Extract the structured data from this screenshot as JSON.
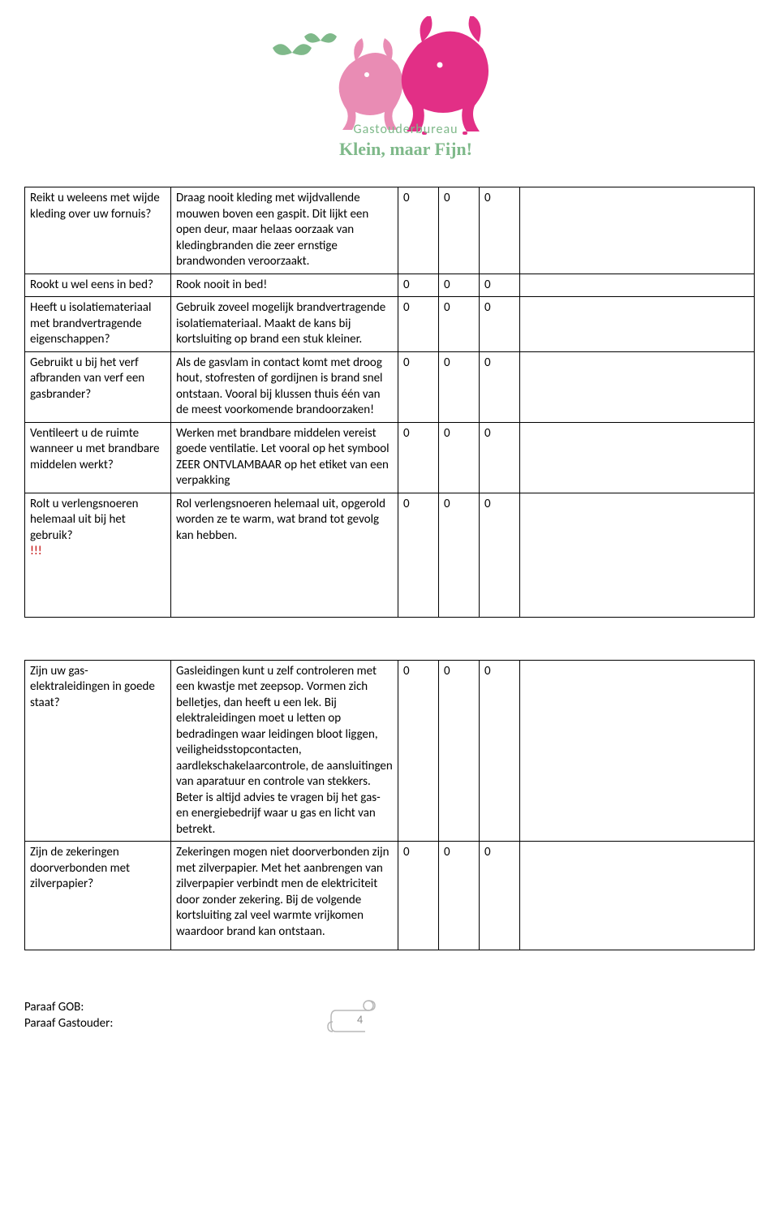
{
  "logo": {
    "line1": "Gastouderbureau",
    "line2": "Klein, maar Fijn!",
    "colors": {
      "green": "#7fb98a",
      "pink_light": "#e98cb4",
      "pink_dark": "#e22f86"
    }
  },
  "table1": {
    "rows": [
      {
        "q": "Reikt u weleens met wijde kleding over uw fornuis?",
        "a": "Draag nooit kleding met wijdvallende mouwen boven een gaspit. Dit lijkt een open deur, maar helaas oorzaak van kledingbranden die zeer ernstige brandwonden veroorzaakt.",
        "v": [
          "0",
          "0",
          "0"
        ]
      },
      {
        "q": "Rookt u wel eens in bed?",
        "a": "Rook nooit in bed!",
        "v": [
          "0",
          "0",
          "0"
        ]
      },
      {
        "q": "Heeft u isolatiemateriaal met brandvertragende eigenschappen?",
        "a": "Gebruik zoveel mogelijk brandvertragende isolatiemateriaal. Maakt de kans bij kortsluiting op brand een stuk kleiner.",
        "v": [
          "0",
          "0",
          "0"
        ]
      },
      {
        "q": "Gebruikt u bij het verf afbranden van verf een gasbrander?",
        "a": "Als de gasvlam in contact komt met droog hout, stofresten of gordijnen is brand snel ontstaan. Vooral bij klussen thuis één van de meest voorkomende brandoorzaken!",
        "v": [
          "0",
          "0",
          "0"
        ]
      },
      {
        "q": "Ventileert u de ruimte wanneer u met brandbare middelen werkt?",
        "a": "Werken met brandbare middelen vereist goede ventilatie. Let vooral op het symbool ZEER ONTVLAMBAAR op het etiket van een verpakking",
        "v": [
          "0",
          "0",
          "0"
        ]
      },
      {
        "q": "Rolt u verlengsnoeren helemaal uit bij het gebruik?",
        "q_warn": "!!!",
        "a": "Rol verlengsnoeren helemaal uit, opgerold worden ze te warm, wat brand tot gevolg kan hebben.",
        "v": [
          "0",
          "0",
          "0"
        ],
        "pad_bottom": true
      }
    ]
  },
  "table2": {
    "rows": [
      {
        "q": "Zijn uw gas- elektraleidingen in goede staat?",
        "a": "Gasleidingen kunt u zelf controleren met een kwastje met zeepsop. Vormen zich belletjes, dan heeft u een lek. Bij elektraleidingen moet u letten op bedradingen waar leidingen bloot liggen, veiligheidsstopcontacten, aardlekschakelaarcontrole, de aansluitingen van aparatuur en controle van stekkers. Beter is altijd advies te vragen bij het gas- en energiebedrijf waar u gas en licht van betrekt.",
        "v": [
          "0",
          "0",
          "0"
        ]
      },
      {
        "q": "Zijn de zekeringen doorverbonden met zilverpapier?",
        "a": "Zekeringen mogen niet doorverbonden zijn met zilverpapier. Met het aanbrengen van zilverpapier verbindt men de elektriciteit door zonder zekering. Bij de volgende kortsluiting zal veel warmte vrijkomen waardoor brand kan ontstaan.",
        "v": [
          "0",
          "0",
          "0"
        ],
        "pad_bottom": true
      }
    ]
  },
  "footer": {
    "line1": "Paraaf GOB:",
    "line2": "Paraaf Gastouder:",
    "page_number": "4"
  }
}
